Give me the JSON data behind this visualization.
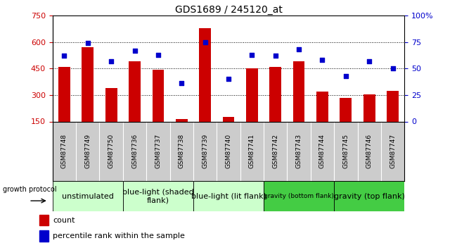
{
  "title": "GDS1689 / 245120_at",
  "samples": [
    "GSM87748",
    "GSM87749",
    "GSM87750",
    "GSM87736",
    "GSM87737",
    "GSM87738",
    "GSM87739",
    "GSM87740",
    "GSM87741",
    "GSM87742",
    "GSM87743",
    "GSM87744",
    "GSM87745",
    "GSM87746",
    "GSM87747"
  ],
  "counts": [
    460,
    570,
    340,
    490,
    445,
    165,
    680,
    175,
    450,
    460,
    490,
    320,
    285,
    305,
    325
  ],
  "percentiles": [
    62,
    74,
    57,
    67,
    63,
    36,
    75,
    40,
    63,
    62,
    68,
    58,
    43,
    57,
    50
  ],
  "ylim": [
    150,
    750
  ],
  "y2lim": [
    0,
    100
  ],
  "yticks": [
    150,
    300,
    450,
    600,
    750
  ],
  "y2ticks": [
    0,
    25,
    50,
    75,
    100
  ],
  "bar_color": "#cc0000",
  "dot_color": "#0000cc",
  "groups": [
    {
      "label": "unstimulated",
      "start": 0,
      "end": 3,
      "color": "#ccffcc",
      "fontsize": 8
    },
    {
      "label": "blue-light (shaded\nflank)",
      "start": 3,
      "end": 6,
      "color": "#ccffcc",
      "fontsize": 8
    },
    {
      "label": "blue-light (lit flank)",
      "start": 6,
      "end": 9,
      "color": "#ccffcc",
      "fontsize": 8
    },
    {
      "label": "gravity (bottom flank)",
      "start": 9,
      "end": 12,
      "color": "#44cc44",
      "fontsize": 6.5
    },
    {
      "label": "gravity (top flank)",
      "start": 12,
      "end": 15,
      "color": "#44cc44",
      "fontsize": 8
    }
  ],
  "xtick_bg": "#cccccc",
  "growth_protocol_label": "growth protocol",
  "legend_items": [
    {
      "label": "count",
      "color": "#cc0000"
    },
    {
      "label": "percentile rank within the sample",
      "color": "#0000cc"
    }
  ],
  "fig_bg": "#ffffff"
}
